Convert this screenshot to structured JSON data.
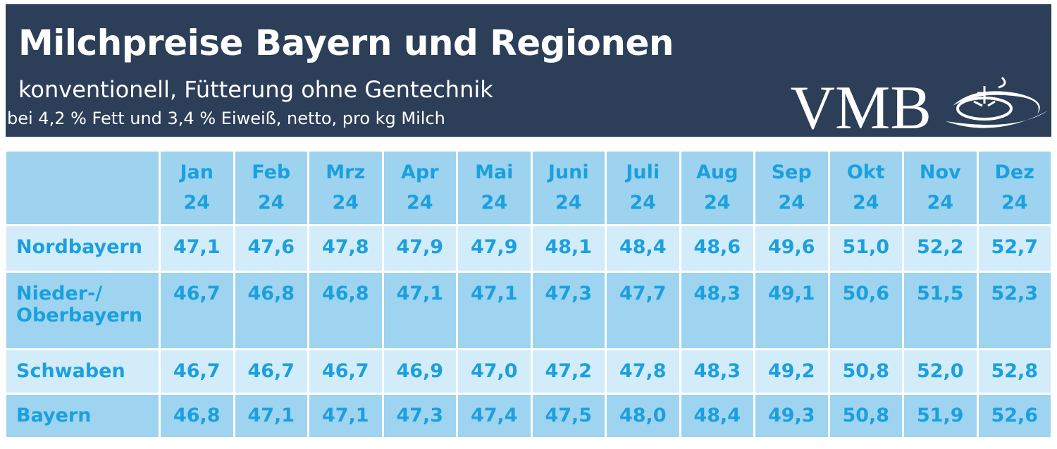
{
  "header": {
    "title": "Milchpreise Bayern und Regionen",
    "subtitle": "konventionell, Fütterung ohne Gentechnik",
    "note": "bei 4,2 % Fett und 3,4 % Eiweiß, netto, pro kg Milch",
    "logo": "VMB"
  },
  "table": {
    "columns": [
      [
        "Jan",
        "24"
      ],
      [
        "Feb",
        "24"
      ],
      [
        "Mrz",
        "24"
      ],
      [
        "Apr",
        "24"
      ],
      [
        "Mai",
        "24"
      ],
      [
        "Juni",
        "24"
      ],
      [
        "Juli",
        "24"
      ],
      [
        "Aug",
        "24"
      ],
      [
        "Sep",
        "24"
      ],
      [
        "Okt",
        "24"
      ],
      [
        "Nov",
        "24"
      ],
      [
        "Dez",
        "24"
      ]
    ],
    "rows": [
      [
        "Nordbayern",
        "47,1",
        "47,6",
        "47,8",
        "47,9",
        "47,9",
        "48,1",
        "48,4",
        "48,6",
        "49,6",
        "51,0",
        "52,2",
        "52,7"
      ],
      [
        "Nieder-/ Oberbayern",
        "46,7",
        "46,8",
        "46,8",
        "47,1",
        "47,1",
        "47,3",
        "47,7",
        "48,3",
        "49,1",
        "50,6",
        "51,5",
        "52,3"
      ],
      [
        "Schwaben",
        "46,7",
        "46,7",
        "46,7",
        "46,9",
        "47,0",
        "47,2",
        "47,8",
        "48,3",
        "49,2",
        "50,8",
        "52,0",
        "52,8"
      ],
      [
        "Bayern",
        "46,8",
        "47,1",
        "47,1",
        "47,3",
        "47,4",
        "47,5",
        "48,0",
        "48,4",
        "49,3",
        "50,8",
        "51,9",
        "52,6"
      ]
    ]
  }
}
